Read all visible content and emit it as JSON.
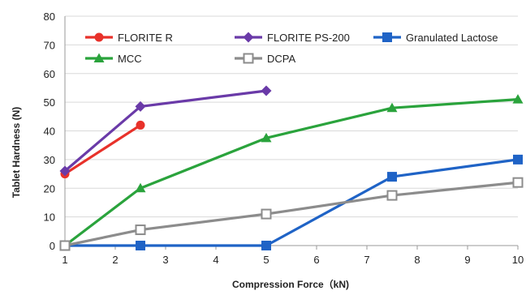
{
  "chart_data": {
    "type": "line",
    "title": "",
    "xlabel": "Compression Force（kN)",
    "ylabel": "Tablet Hardness (N)",
    "xlim": [
      1,
      10
    ],
    "ylim": [
      0,
      80
    ],
    "xticks": [
      1,
      2,
      3,
      4,
      5,
      6,
      7,
      8,
      9,
      10
    ],
    "yticks": [
      0,
      10,
      20,
      30,
      40,
      50,
      60,
      70,
      80
    ],
    "grid": "horizontal",
    "legend_position": "top-left inside plot",
    "series": [
      {
        "name": "FLORITE R",
        "color": "#e8312a",
        "marker": "circle",
        "x": [
          1,
          2.5
        ],
        "y": [
          25,
          42
        ]
      },
      {
        "name": "FLORITE PS-200",
        "color": "#6a3aa8",
        "marker": "diamond",
        "x": [
          1,
          2.5,
          5
        ],
        "y": [
          26,
          48.5,
          54
        ]
      },
      {
        "name": "Granulated Lactose",
        "color": "#1f63c6",
        "marker": "square",
        "x": [
          1,
          2.5,
          5,
          7.5,
          10
        ],
        "y": [
          0,
          0,
          0,
          24,
          30
        ]
      },
      {
        "name": "MCC",
        "color": "#2aa33c",
        "marker": "triangle",
        "x": [
          1,
          2.5,
          5,
          7.5,
          10
        ],
        "y": [
          0,
          20,
          37.5,
          48,
          51
        ]
      },
      {
        "name": "DCPA",
        "color": "#8c8c8c",
        "marker": "open-square",
        "x": [
          1,
          2.5,
          5,
          7.5,
          10
        ],
        "y": [
          0,
          5.5,
          11,
          17.5,
          22
        ]
      }
    ]
  }
}
